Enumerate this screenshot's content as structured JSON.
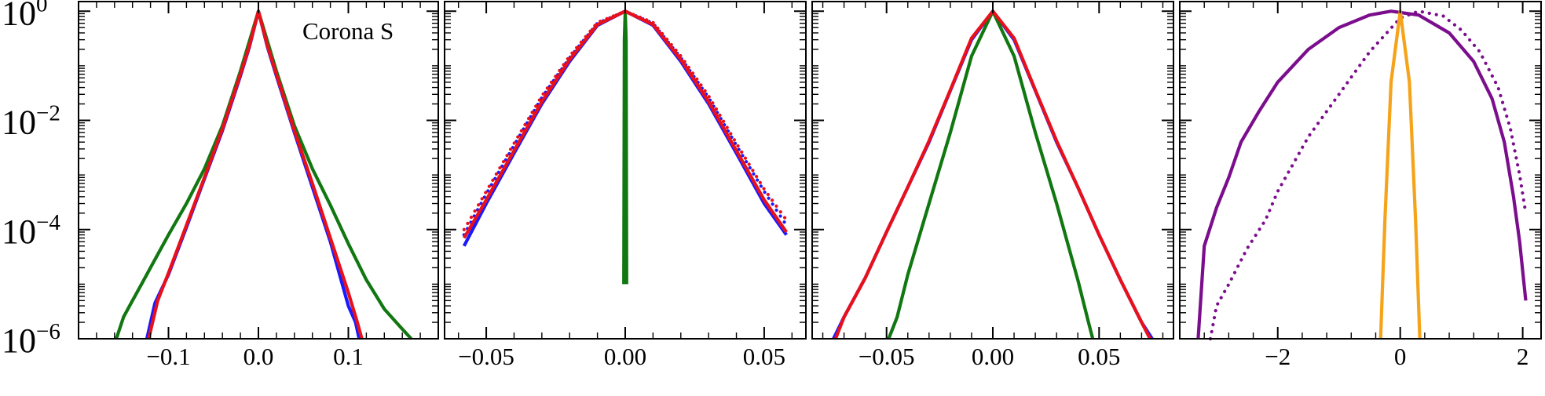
{
  "figure": {
    "annotation": "Corona S"
  },
  "chart_data": [
    {
      "type": "line",
      "yscale": "log",
      "ylim": [
        1e-06,
        1.5
      ],
      "xlim": [
        -0.2,
        0.2
      ],
      "xticks": [
        {
          "v": -0.1,
          "label": "−0.1"
        },
        {
          "v": 0.0,
          "label": "0.0"
        },
        {
          "v": 0.1,
          "label": "0.1"
        }
      ],
      "yticks": [
        {
          "v": 1,
          "base": "10",
          "exp": "0"
        },
        {
          "v": 0.01,
          "base": "10",
          "exp": "−2"
        },
        {
          "v": 0.0001,
          "base": "10",
          "exp": "−4"
        },
        {
          "v": 1e-06,
          "base": "10",
          "exp": "−6"
        }
      ],
      "series": [
        {
          "color": "#1a1aff",
          "dash": "solid",
          "points": [
            [
              -0.124,
              1e-06
            ],
            [
              -0.115,
              4.5e-06
            ],
            [
              -0.1,
              1.5e-05
            ],
            [
              -0.08,
              0.00011
            ],
            [
              -0.06,
              0.00085
            ],
            [
              -0.04,
              0.0065
            ],
            [
              -0.02,
              0.065
            ],
            [
              -0.01,
              0.22
            ],
            [
              0,
              1
            ],
            [
              0.01,
              0.22
            ],
            [
              0.02,
              0.065
            ],
            [
              0.04,
              0.006
            ],
            [
              0.06,
              0.0006
            ],
            [
              0.08,
              6e-05
            ],
            [
              0.1,
              4e-06
            ],
            [
              0.108,
              2e-06
            ],
            [
              0.112,
              1e-06
            ]
          ]
        },
        {
          "color": "#117711",
          "dash": "solid",
          "points": [
            [
              -0.158,
              1e-06
            ],
            [
              -0.15,
              2.5e-06
            ],
            [
              -0.14,
              5e-06
            ],
            [
              -0.13,
              1e-05
            ],
            [
              -0.12,
              2e-05
            ],
            [
              -0.1,
              8e-05
            ],
            [
              -0.08,
              0.0003
            ],
            [
              -0.06,
              0.0013
            ],
            [
              -0.04,
              0.008
            ],
            [
              -0.02,
              0.08
            ],
            [
              0,
              1
            ],
            [
              0.02,
              0.08
            ],
            [
              0.04,
              0.008
            ],
            [
              0.06,
              0.0013
            ],
            [
              0.08,
              0.00028
            ],
            [
              0.1,
              5.5e-05
            ],
            [
              0.12,
              1.2e-05
            ],
            [
              0.14,
              3.5e-06
            ],
            [
              0.16,
              1.5e-06
            ],
            [
              0.17,
              1e-06
            ]
          ]
        },
        {
          "color": "#e8101a",
          "dash": "solid",
          "points": [
            [
              -0.122,
              1e-06
            ],
            [
              -0.112,
              5e-06
            ],
            [
              -0.1,
              1.6e-05
            ],
            [
              -0.08,
              0.00012
            ],
            [
              -0.06,
              0.0009
            ],
            [
              -0.04,
              0.007
            ],
            [
              -0.02,
              0.07
            ],
            [
              -0.01,
              0.23
            ],
            [
              0,
              1
            ],
            [
              0.01,
              0.23
            ],
            [
              0.02,
              0.07
            ],
            [
              0.04,
              0.0065
            ],
            [
              0.06,
              0.0007
            ],
            [
              0.08,
              7e-05
            ],
            [
              0.1,
              7e-06
            ],
            [
              0.11,
              2e-06
            ],
            [
              0.115,
              1e-06
            ]
          ]
        }
      ]
    },
    {
      "type": "line",
      "yscale": "log",
      "ylim": [
        1e-06,
        1.5
      ],
      "xlim": [
        -0.065,
        0.065
      ],
      "xticks": [
        {
          "v": -0.05,
          "label": "−0.05"
        },
        {
          "v": 0.0,
          "label": "0.00"
        },
        {
          "v": 0.05,
          "label": "0.05"
        }
      ],
      "series": [
        {
          "color": "#1a1aff",
          "dash": "solid",
          "points": [
            [
              -0.058,
              5e-05
            ],
            [
              -0.05,
              0.0003
            ],
            [
              -0.04,
              0.0025
            ],
            [
              -0.03,
              0.02
            ],
            [
              -0.02,
              0.12
            ],
            [
              -0.01,
              0.55
            ],
            [
              0,
              1
            ],
            [
              0.01,
              0.55
            ],
            [
              0.02,
              0.12
            ],
            [
              0.03,
              0.02
            ],
            [
              0.04,
              0.0025
            ],
            [
              0.05,
              0.0003
            ],
            [
              0.058,
              8e-05
            ]
          ]
        },
        {
          "color": "#1a1aff",
          "dash": "dotted",
          "points": [
            [
              -0.058,
              8e-05
            ],
            [
              -0.05,
              0.00045
            ],
            [
              -0.04,
              0.0035
            ],
            [
              -0.03,
              0.026
            ],
            [
              -0.02,
              0.14
            ],
            [
              -0.01,
              0.6
            ],
            [
              0,
              1
            ],
            [
              0.01,
              0.6
            ],
            [
              0.02,
              0.14
            ],
            [
              0.03,
              0.026
            ],
            [
              0.04,
              0.0035
            ],
            [
              0.05,
              0.0005
            ],
            [
              0.058,
              0.00012
            ]
          ]
        },
        {
          "color": "#117711",
          "dash": "solid",
          "points": [
            [
              -0.0005,
              1e-05
            ],
            [
              -0.0003,
              0.3
            ],
            [
              0,
              1
            ],
            [
              0.0003,
              0.3
            ],
            [
              0.0005,
              1e-05
            ]
          ]
        },
        {
          "color": "#e8101a",
          "dash": "solid",
          "points": [
            [
              -0.058,
              7e-05
            ],
            [
              -0.05,
              0.00035
            ],
            [
              -0.04,
              0.0028
            ],
            [
              -0.03,
              0.022
            ],
            [
              -0.02,
              0.13
            ],
            [
              -0.01,
              0.57
            ],
            [
              0,
              1
            ],
            [
              0.01,
              0.57
            ],
            [
              0.02,
              0.13
            ],
            [
              0.03,
              0.022
            ],
            [
              0.04,
              0.0028
            ],
            [
              0.05,
              0.00035
            ],
            [
              0.058,
              9e-05
            ]
          ]
        },
        {
          "color": "#e8101a",
          "dash": "dotted",
          "points": [
            [
              -0.058,
              0.0001
            ],
            [
              -0.05,
              0.0005
            ],
            [
              -0.04,
              0.0038
            ],
            [
              -0.03,
              0.028
            ],
            [
              -0.02,
              0.15
            ],
            [
              -0.01,
              0.62
            ],
            [
              0,
              1
            ],
            [
              0.01,
              0.62
            ],
            [
              0.02,
              0.15
            ],
            [
              0.03,
              0.028
            ],
            [
              0.04,
              0.0038
            ],
            [
              0.05,
              0.00055
            ],
            [
              0.058,
              0.00015
            ]
          ]
        }
      ]
    },
    {
      "type": "line",
      "yscale": "log",
      "ylim": [
        1e-06,
        1.5
      ],
      "xlim": [
        -0.085,
        0.085
      ],
      "xticks": [
        {
          "v": -0.05,
          "label": "−0.05"
        },
        {
          "v": 0.0,
          "label": "0.00"
        },
        {
          "v": 0.05,
          "label": "0.05"
        }
      ],
      "series": [
        {
          "color": "#1a1aff",
          "dash": "solid",
          "points": [
            [
              -0.075,
              1e-06
            ],
            [
              -0.07,
              2.5e-06
            ],
            [
              -0.06,
              1.3e-05
            ],
            [
              -0.05,
              9e-05
            ],
            [
              -0.04,
              0.0006
            ],
            [
              -0.03,
              0.004
            ],
            [
              -0.02,
              0.035
            ],
            [
              -0.01,
              0.3
            ],
            [
              0,
              1
            ],
            [
              0.01,
              0.3
            ],
            [
              0.02,
              0.035
            ],
            [
              0.03,
              0.004
            ],
            [
              0.04,
              0.0006
            ],
            [
              0.05,
              8e-05
            ],
            [
              0.06,
              1.2e-05
            ],
            [
              0.07,
              2e-06
            ],
            [
              0.075,
              1e-06
            ]
          ]
        },
        {
          "color": "#117711",
          "dash": "solid",
          "points": [
            [
              -0.049,
              1e-06
            ],
            [
              -0.045,
              2.5e-06
            ],
            [
              -0.04,
              1.5e-05
            ],
            [
              -0.03,
              0.0003
            ],
            [
              -0.02,
              0.006
            ],
            [
              -0.01,
              0.15
            ],
            [
              0,
              1
            ],
            [
              0.01,
              0.15
            ],
            [
              0.02,
              0.006
            ],
            [
              0.03,
              0.0003
            ],
            [
              0.04,
              1.2e-05
            ],
            [
              0.045,
              2e-06
            ],
            [
              0.047,
              1e-06
            ]
          ]
        },
        {
          "color": "#e8101a",
          "dash": "solid",
          "points": [
            [
              -0.074,
              1e-06
            ],
            [
              -0.07,
              2.5e-06
            ],
            [
              -0.06,
              1.3e-05
            ],
            [
              -0.05,
              9e-05
            ],
            [
              -0.04,
              0.0006
            ],
            [
              -0.03,
              0.0042
            ],
            [
              -0.02,
              0.036
            ],
            [
              -0.01,
              0.32
            ],
            [
              0,
              1
            ],
            [
              0.01,
              0.32
            ],
            [
              0.02,
              0.036
            ],
            [
              0.03,
              0.0042
            ],
            [
              0.04,
              0.0006
            ],
            [
              0.05,
              8e-05
            ],
            [
              0.06,
              1.2e-05
            ],
            [
              0.07,
              2e-06
            ],
            [
              0.074,
              1e-06
            ]
          ]
        }
      ]
    },
    {
      "type": "line",
      "yscale": "log",
      "ylim": [
        1e-06,
        1.5
      ],
      "xlim": [
        -3.6,
        2.3
      ],
      "xticks": [
        {
          "v": -2,
          "label": "−2"
        },
        {
          "v": 0,
          "label": "0"
        },
        {
          "v": 2,
          "label": "2"
        }
      ],
      "series": [
        {
          "color": "#7b0e8c",
          "dash": "solid",
          "points": [
            [
              -3.3,
              1e-06
            ],
            [
              -3.2,
              5e-05
            ],
            [
              -3.0,
              0.00025
            ],
            [
              -2.8,
              0.0009
            ],
            [
              -2.6,
              0.004
            ],
            [
              -2.3,
              0.015
            ],
            [
              -2.0,
              0.05
            ],
            [
              -1.5,
              0.2
            ],
            [
              -1.0,
              0.5
            ],
            [
              -0.5,
              0.85
            ],
            [
              -0.15,
              1
            ],
            [
              0.3,
              0.85
            ],
            [
              0.8,
              0.4
            ],
            [
              1.2,
              0.12
            ],
            [
              1.5,
              0.025
            ],
            [
              1.7,
              0.004
            ],
            [
              1.85,
              0.0004
            ],
            [
              1.95,
              6e-05
            ],
            [
              2.05,
              5e-06
            ]
          ]
        },
        {
          "color": "#7b0e8c",
          "dash": "dotted",
          "points": [
            [
              -3.1,
              1e-06
            ],
            [
              -3.0,
              4e-06
            ],
            [
              -2.8,
              1e-05
            ],
            [
              -2.5,
              4.5e-05
            ],
            [
              -2.2,
              0.00015
            ],
            [
              -2.0,
              0.0005
            ],
            [
              -1.5,
              0.005
            ],
            [
              -1.0,
              0.03
            ],
            [
              -0.5,
              0.18
            ],
            [
              0,
              0.75
            ],
            [
              0.3,
              1
            ],
            [
              0.7,
              0.82
            ],
            [
              1.0,
              0.45
            ],
            [
              1.3,
              0.18
            ],
            [
              1.6,
              0.04
            ],
            [
              1.8,
              0.007
            ],
            [
              1.95,
              0.001
            ],
            [
              2.05,
              0.0002
            ]
          ]
        },
        {
          "color": "#f5a31a",
          "dash": "solid",
          "points": [
            [
              -0.32,
              1e-06
            ],
            [
              -0.25,
              0.00015
            ],
            [
              -0.15,
              0.05
            ],
            [
              0,
              1
            ],
            [
              0.15,
              0.05
            ],
            [
              0.25,
              0.00015
            ],
            [
              0.32,
              1e-06
            ]
          ]
        }
      ]
    }
  ]
}
